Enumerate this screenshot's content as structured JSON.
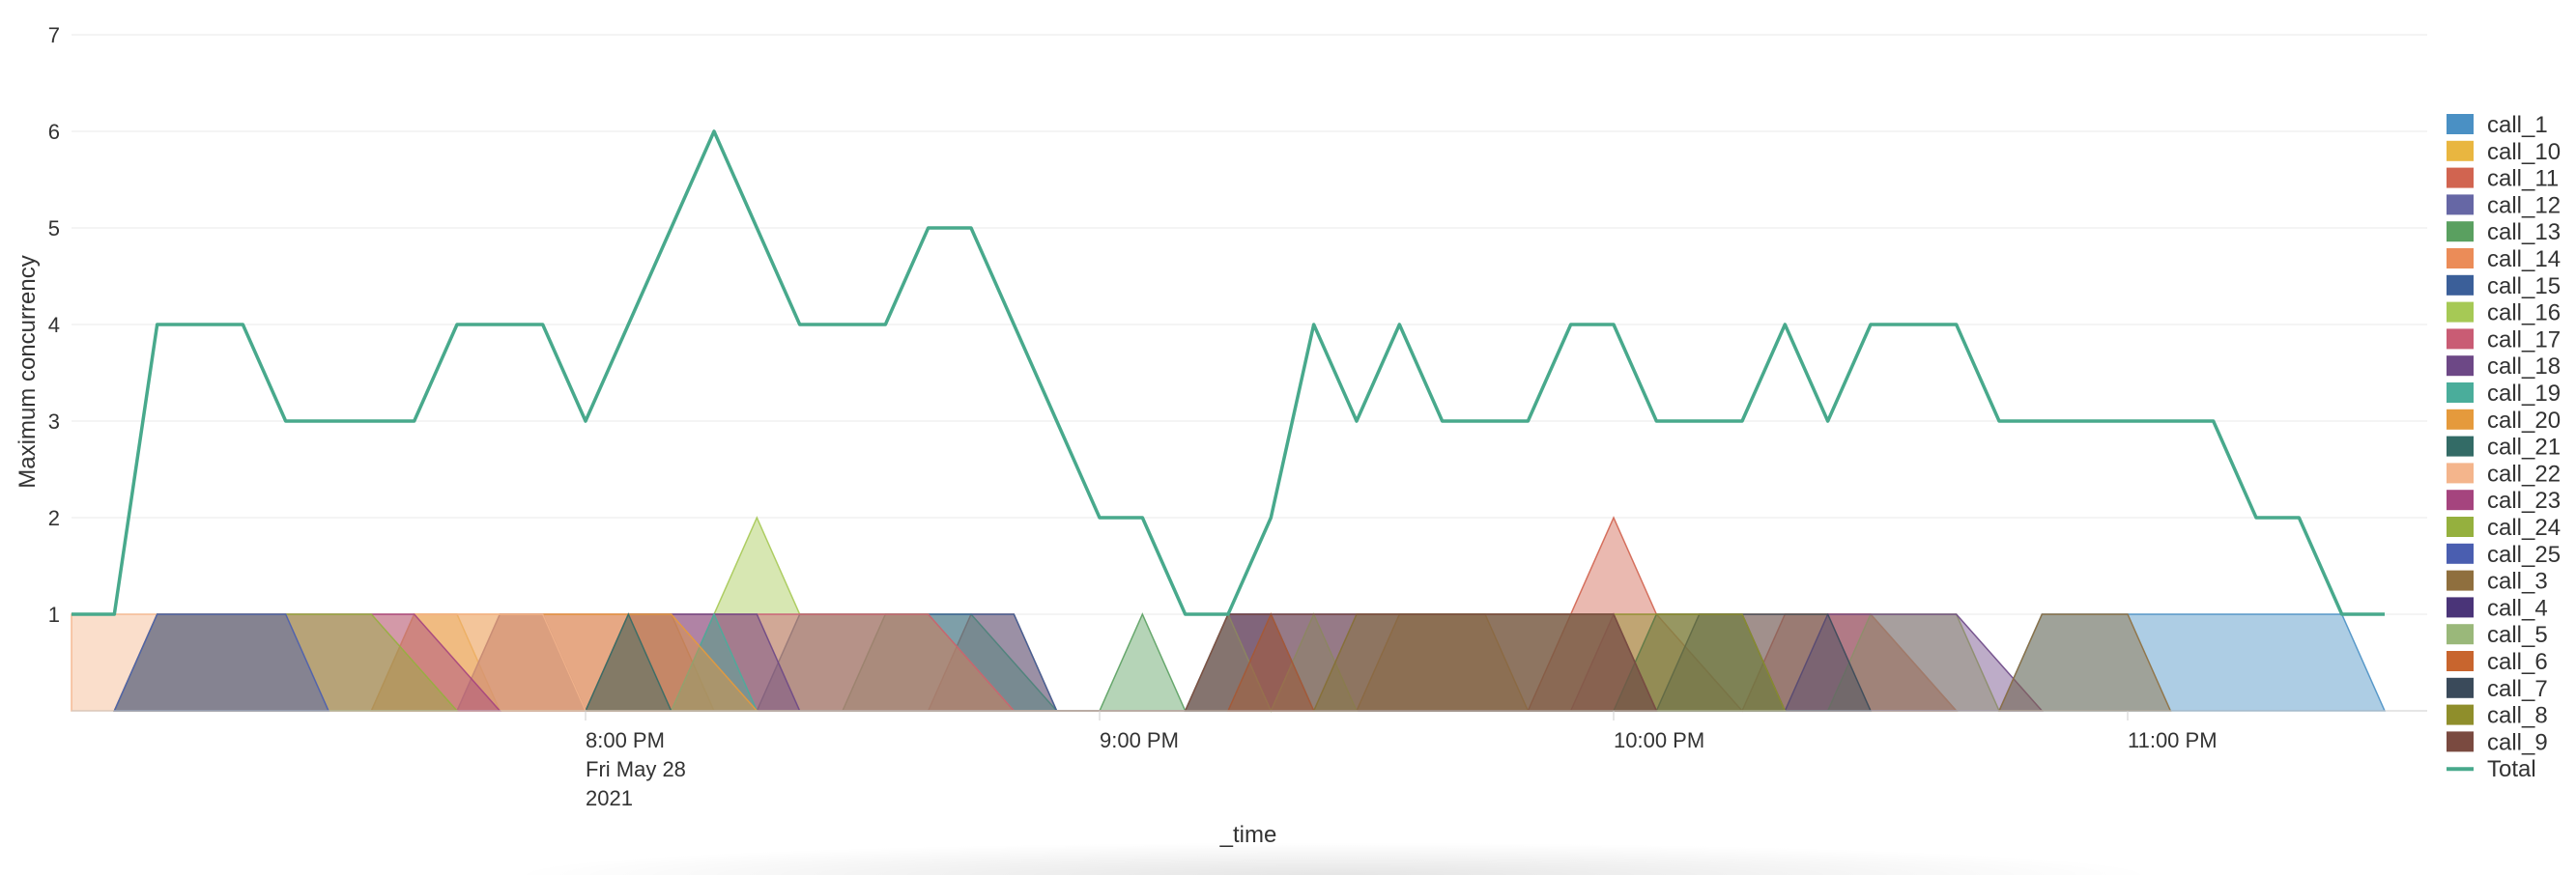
{
  "chart_data": {
    "type": "area",
    "ylabel": "Maximum concurrency",
    "xlabel": "_time",
    "ylim": [
      0,
      7
    ],
    "y_ticks": [
      1,
      2,
      3,
      4,
      5,
      6,
      7
    ],
    "x_ticks": [
      {
        "x": 60,
        "lines": [
          "8:00 PM",
          "Fri May 28",
          "2021"
        ]
      },
      {
        "x": 120,
        "lines": [
          "9:00 PM"
        ]
      },
      {
        "x": 180,
        "lines": [
          "10:00 PM"
        ]
      },
      {
        "x": 240,
        "lines": [
          "11:00 PM"
        ]
      }
    ],
    "x_unit": "minutes after 7:00 PM, Fri May 28 2021",
    "xlim": [
      0,
      270
    ],
    "grid": true,
    "legend_position": "right",
    "series": [
      {
        "name": "call_1",
        "color": "#4a90c4",
        "points": [
          [
            225,
            0
          ],
          [
            230,
            1
          ],
          [
            235,
            1
          ],
          [
            245,
            1
          ],
          [
            250,
            1
          ],
          [
            255,
            1
          ],
          [
            260,
            1
          ],
          [
            265,
            1
          ],
          [
            270,
            0
          ]
        ]
      },
      {
        "name": "call_10",
        "color": "#e9b640",
        "points": [
          [
            35,
            0
          ],
          [
            40,
            1
          ],
          [
            45,
            1
          ],
          [
            50,
            0
          ],
          [
            60,
            0
          ],
          [
            65,
            1
          ],
          [
            70,
            1
          ],
          [
            75,
            0
          ],
          [
            150,
            0
          ],
          [
            155,
            1
          ],
          [
            160,
            1
          ],
          [
            165,
            1
          ],
          [
            170,
            0
          ]
        ]
      },
      {
        "name": "call_11",
        "color": "#d16450",
        "points": [
          [
            100,
            0
          ],
          [
            105,
            1
          ],
          [
            110,
            1
          ],
          [
            115,
            0
          ],
          [
            170,
            0
          ],
          [
            175,
            1
          ],
          [
            180,
            2
          ],
          [
            185,
            1
          ],
          [
            195,
            0
          ],
          [
            200,
            1
          ],
          [
            205,
            1
          ],
          [
            210,
            1
          ],
          [
            220,
            0
          ]
        ]
      },
      {
        "name": "call_12",
        "color": "#6667a5",
        "points": [
          [
            130,
            0
          ],
          [
            135,
            1
          ],
          [
            140,
            1
          ],
          [
            145,
            0
          ]
        ]
      },
      {
        "name": "call_13",
        "color": "#5aa060",
        "points": [
          [
            90,
            0
          ],
          [
            95,
            1
          ],
          [
            100,
            1
          ],
          [
            105,
            1
          ],
          [
            115,
            0
          ],
          [
            120,
            0
          ],
          [
            125,
            1
          ],
          [
            130,
            0
          ]
        ]
      },
      {
        "name": "call_14",
        "color": "#eb8c58",
        "points": [
          [
            180,
            0
          ],
          [
            185,
            1
          ],
          [
            195,
            1
          ],
          [
            200,
            1
          ],
          [
            205,
            1
          ],
          [
            210,
            1
          ],
          [
            220,
            0
          ]
        ]
      },
      {
        "name": "call_15",
        "color": "#3b5f99",
        "points": [
          [
            80,
            0
          ],
          [
            85,
            1
          ],
          [
            95,
            1
          ],
          [
            100,
            1
          ],
          [
            110,
            1
          ],
          [
            115,
            0
          ]
        ]
      },
      {
        "name": "call_16",
        "color": "#a6c955",
        "points": [
          [
            70,
            0
          ],
          [
            75,
            1
          ],
          [
            80,
            2
          ],
          [
            85,
            1
          ],
          [
            95,
            1
          ],
          [
            100,
            1
          ],
          [
            110,
            0
          ],
          [
            205,
            0
          ],
          [
            210,
            1
          ],
          [
            215,
            1
          ],
          [
            220,
            1
          ],
          [
            225,
            0
          ]
        ]
      },
      {
        "name": "call_17",
        "color": "#c95c74",
        "points": [
          [
            45,
            0
          ],
          [
            50,
            1
          ],
          [
            55,
            1
          ],
          [
            60,
            1
          ],
          [
            65,
            1
          ],
          [
            70,
            1
          ],
          [
            80,
            1
          ],
          [
            90,
            1
          ],
          [
            100,
            1
          ],
          [
            110,
            0
          ],
          [
            175,
            0
          ],
          [
            180,
            1
          ],
          [
            185,
            0
          ]
        ]
      },
      {
        "name": "call_18",
        "color": "#6d4886",
        "points": [
          [
            45,
            0
          ],
          [
            50,
            1
          ],
          [
            55,
            1
          ],
          [
            60,
            0
          ],
          [
            65,
            1
          ],
          [
            70,
            1
          ],
          [
            80,
            1
          ],
          [
            85,
            0
          ],
          [
            200,
            0
          ],
          [
            205,
            1
          ],
          [
            210,
            1
          ],
          [
            220,
            1
          ],
          [
            230,
            0
          ]
        ]
      },
      {
        "name": "call_19",
        "color": "#4aad9b",
        "points": [
          [
            70,
            0
          ],
          [
            75,
            1
          ],
          [
            80,
            0
          ]
        ]
      },
      {
        "name": "call_20",
        "color": "#e59a3c",
        "points": [
          [
            35,
            0
          ],
          [
            40,
            1
          ],
          [
            45,
            1
          ],
          [
            50,
            1
          ],
          [
            55,
            1
          ],
          [
            60,
            1
          ],
          [
            65,
            1
          ],
          [
            70,
            1
          ],
          [
            80,
            0
          ]
        ]
      },
      {
        "name": "call_21",
        "color": "#336b66",
        "points": [
          [
            60,
            0
          ],
          [
            65,
            1
          ],
          [
            70,
            0
          ],
          [
            180,
            0
          ],
          [
            185,
            1
          ],
          [
            190,
            1
          ],
          [
            195,
            1
          ],
          [
            200,
            0
          ]
        ]
      },
      {
        "name": "call_22",
        "color": "#f4b58c",
        "points": [
          [
            0,
            1
          ],
          [
            5,
            1
          ],
          [
            10,
            1
          ],
          [
            15,
            1
          ],
          [
            20,
            1
          ],
          [
            25,
            1
          ],
          [
            30,
            1
          ],
          [
            35,
            1
          ],
          [
            40,
            1
          ],
          [
            45,
            1
          ],
          [
            50,
            1
          ],
          [
            55,
            1
          ],
          [
            60,
            0
          ],
          [
            135,
            0
          ],
          [
            140,
            1
          ],
          [
            145,
            0
          ]
        ]
      },
      {
        "name": "call_23",
        "color": "#a5447e",
        "points": [
          [
            5,
            0
          ],
          [
            10,
            1
          ],
          [
            15,
            1
          ],
          [
            20,
            1
          ],
          [
            25,
            1
          ],
          [
            30,
            1
          ],
          [
            35,
            1
          ],
          [
            40,
            1
          ],
          [
            50,
            0
          ]
        ]
      },
      {
        "name": "call_24",
        "color": "#95b03e",
        "points": [
          [
            5,
            0
          ],
          [
            10,
            1
          ],
          [
            15,
            1
          ],
          [
            20,
            1
          ],
          [
            25,
            1
          ],
          [
            30,
            1
          ],
          [
            35,
            1
          ],
          [
            45,
            0
          ]
        ]
      },
      {
        "name": "call_25",
        "color": "#4a5eb0",
        "points": [
          [
            5,
            0
          ],
          [
            10,
            1
          ],
          [
            15,
            1
          ],
          [
            20,
            1
          ],
          [
            25,
            1
          ],
          [
            30,
            0
          ]
        ]
      },
      {
        "name": "call_3",
        "color": "#8f6f3e",
        "points": [
          [
            225,
            0
          ],
          [
            230,
            1
          ],
          [
            235,
            1
          ],
          [
            240,
            1
          ],
          [
            245,
            0
          ]
        ]
      },
      {
        "name": "call_4",
        "color": "#4a3478",
        "points": [
          [
            130,
            0
          ],
          [
            135,
            1
          ],
          [
            140,
            1
          ],
          [
            145,
            1
          ],
          [
            150,
            1
          ],
          [
            155,
            1
          ],
          [
            160,
            1
          ],
          [
            165,
            1
          ],
          [
            170,
            1
          ],
          [
            175,
            1
          ],
          [
            180,
            1
          ],
          [
            185,
            0
          ]
        ]
      },
      {
        "name": "call_5",
        "color": "#9ab87a",
        "points": [
          [
            130,
            0
          ],
          [
            135,
            1
          ],
          [
            140,
            0
          ],
          [
            145,
            1
          ],
          [
            150,
            0
          ]
        ]
      },
      {
        "name": "call_6",
        "color": "#c8652e",
        "points": [
          [
            135,
            0
          ],
          [
            140,
            1
          ],
          [
            145,
            0
          ]
        ]
      },
      {
        "name": "call_7",
        "color": "#3a4a5a",
        "points": [
          [
            185,
            0
          ],
          [
            190,
            1
          ],
          [
            195,
            1
          ],
          [
            200,
            1
          ],
          [
            205,
            1
          ],
          [
            210,
            0
          ]
        ]
      },
      {
        "name": "call_8",
        "color": "#8f8e2b",
        "points": [
          [
            145,
            0
          ],
          [
            150,
            1
          ],
          [
            155,
            1
          ],
          [
            160,
            1
          ],
          [
            165,
            1
          ],
          [
            170,
            1
          ],
          [
            175,
            1
          ],
          [
            180,
            1
          ],
          [
            190,
            1
          ],
          [
            195,
            1
          ],
          [
            200,
            0
          ]
        ]
      },
      {
        "name": "call_9",
        "color": "#7a4a40",
        "points": [
          [
            130,
            0
          ],
          [
            135,
            1
          ],
          [
            140,
            1
          ],
          [
            145,
            1
          ],
          [
            150,
            1
          ],
          [
            155,
            1
          ],
          [
            160,
            1
          ],
          [
            165,
            1
          ],
          [
            170,
            1
          ],
          [
            175,
            1
          ],
          [
            180,
            1
          ],
          [
            185,
            0
          ]
        ]
      }
    ],
    "total": {
      "name": "Total",
      "color": "#48a98c",
      "values": [
        [
          0,
          1
        ],
        [
          5,
          1
        ],
        [
          10,
          4
        ],
        [
          15,
          4
        ],
        [
          20,
          4
        ],
        [
          25,
          3
        ],
        [
          30,
          3
        ],
        [
          35,
          3
        ],
        [
          40,
          3
        ],
        [
          45,
          4
        ],
        [
          50,
          4
        ],
        [
          55,
          4
        ],
        [
          60,
          3
        ],
        [
          65,
          4
        ],
        [
          70,
          5
        ],
        [
          75,
          6
        ],
        [
          80,
          5
        ],
        [
          85,
          4
        ],
        [
          90,
          4
        ],
        [
          95,
          4
        ],
        [
          100,
          5
        ],
        [
          105,
          5
        ],
        [
          110,
          4
        ],
        [
          115,
          3
        ],
        [
          120,
          2
        ],
        [
          125,
          2
        ],
        [
          130,
          1
        ],
        [
          135,
          1
        ],
        [
          140,
          2
        ],
        [
          145,
          4
        ],
        [
          150,
          3
        ],
        [
          155,
          4
        ],
        [
          160,
          3
        ],
        [
          165,
          3
        ],
        [
          170,
          3
        ],
        [
          175,
          4
        ],
        [
          180,
          4
        ],
        [
          185,
          3
        ],
        [
          190,
          3
        ],
        [
          195,
          3
        ],
        [
          200,
          4
        ],
        [
          205,
          3
        ],
        [
          210,
          4
        ],
        [
          215,
          4
        ],
        [
          220,
          4
        ],
        [
          225,
          3
        ],
        [
          230,
          3
        ],
        [
          235,
          3
        ],
        [
          240,
          3
        ],
        [
          245,
          3
        ],
        [
          250,
          3
        ],
        [
          255,
          2
        ],
        [
          260,
          2
        ],
        [
          265,
          1
        ],
        [
          270,
          1
        ]
      ]
    }
  }
}
